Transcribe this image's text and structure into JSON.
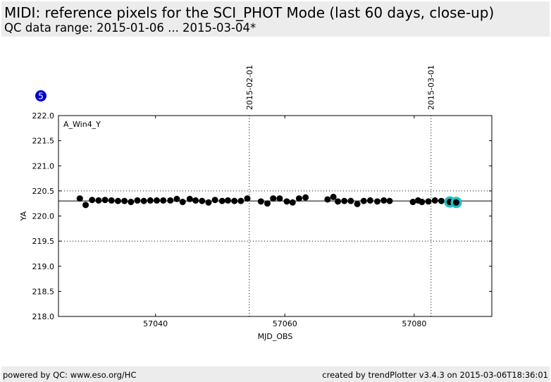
{
  "header": {
    "title": "MIDI: reference pixels for the SCI_PHOT Mode (last 60 days, close-up)",
    "subtitle": "QC data range: 2015-01-06 ... 2015-03-04*"
  },
  "footer": {
    "left": "powered by QC: www.eso.org/HC",
    "right": "created by trendPlotter v3.4.3 on 2015-03-06T18:36:01"
  },
  "badge": {
    "label": "5",
    "color": "#0000cc"
  },
  "colors": {
    "points": "#000000",
    "highlight": "#20c0c0",
    "badge": "#0000cc"
  },
  "chart_data": {
    "type": "scatter",
    "panel_label": "A_Win4_Y",
    "xlabel": "MJD_OBS",
    "ylabel": "YA",
    "xlim": [
      57025,
      57092
    ],
    "ylim": [
      218.0,
      222.0
    ],
    "xticks": [
      57040,
      57060,
      57080
    ],
    "yticks": [
      218.0,
      218.5,
      219.0,
      219.5,
      220.0,
      220.5,
      221.0,
      221.5,
      222.0
    ],
    "reference_line": 220.3,
    "limit_lines": [
      219.5,
      220.5
    ],
    "date_markers": [
      {
        "x": 57054.5,
        "label": "2015-02-01"
      },
      {
        "x": 57082.6,
        "label": "2015-03-01"
      }
    ],
    "series": [
      {
        "x": [
          57028.3,
          57029.2,
          57030.2,
          57031.2,
          57032.2,
          57033.2,
          57034.2,
          57035.2,
          57036.2,
          57037.2,
          57038.2,
          57039.2,
          57040.2,
          57041.2,
          57042.3,
          57043.3,
          57044.2,
          57045.3,
          57046.2,
          57047.2,
          57048.2,
          57049.2,
          57050.3,
          57051.2,
          57052.2,
          57053.2,
          57054.2,
          57056.3,
          57057.3,
          57058.2,
          57059.2,
          57060.3,
          57061.2,
          57062.2,
          57063.2,
          57066.6,
          57067.5,
          57068.2,
          57069.2,
          57070.2,
          57071.2,
          57072.2,
          57073.2,
          57074.3,
          57075.3,
          57076.2,
          57079.8,
          57080.6,
          57081.2,
          57082.2,
          57083.2,
          57084.2
        ],
        "y": [
          220.35,
          220.22,
          220.32,
          220.31,
          220.32,
          220.31,
          220.3,
          220.3,
          220.28,
          220.31,
          220.3,
          220.31,
          220.31,
          220.31,
          220.31,
          220.34,
          220.28,
          220.34,
          220.31,
          220.3,
          220.27,
          220.32,
          220.3,
          220.31,
          220.3,
          220.3,
          220.35,
          220.29,
          220.25,
          220.35,
          220.35,
          220.29,
          220.27,
          220.35,
          220.37,
          220.33,
          220.38,
          220.29,
          220.3,
          220.3,
          220.24,
          220.3,
          220.31,
          220.29,
          220.31,
          220.3,
          220.28,
          220.31,
          220.28,
          220.29,
          220.31,
          220.3
        ]
      },
      {
        "highlighted": true,
        "x": [
          57085.5,
          57086.5
        ],
        "y": [
          220.28,
          220.27
        ]
      }
    ]
  }
}
